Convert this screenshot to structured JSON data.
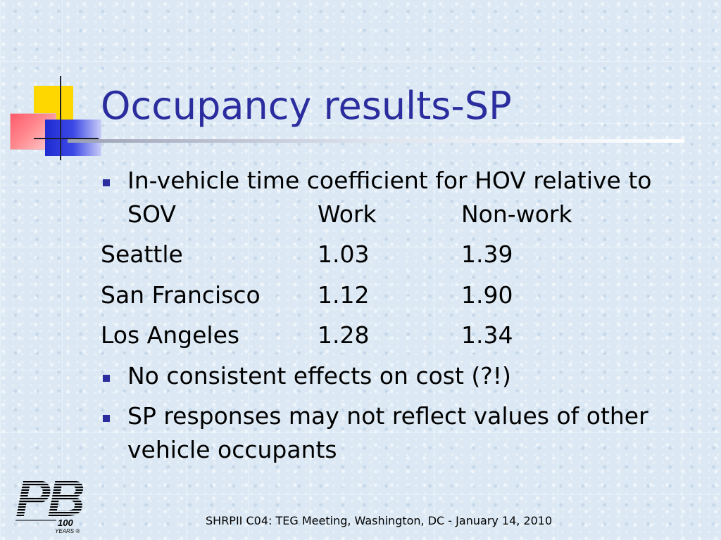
{
  "slide": {
    "title": "Occupancy results-SP",
    "bullets": [
      {
        "line1": "In-vehicle time coefficient for HOV relative to",
        "line2": "SOV"
      },
      {
        "text": "No consistent effects on cost (?!)"
      },
      {
        "line1": "SP responses may not reflect values of other",
        "line2": "vehicle occupants"
      }
    ],
    "table": {
      "headers": {
        "work": "Work",
        "nonwork": "Non-work"
      },
      "rows": [
        {
          "city": "Seattle",
          "work": "1.03",
          "nonwork": "1.39"
        },
        {
          "city": "San Francisco",
          "work": "1.12",
          "nonwork": "1.90"
        },
        {
          "city": "Los Angeles",
          "work": "1.28",
          "nonwork": "1.34"
        }
      ]
    }
  },
  "footer": "SHRPII C04: TEG Meeting, Washington, DC - January 14, 2010",
  "logo": {
    "letters": "PB",
    "years_num": "100",
    "years_word": "YEARS ®"
  },
  "colors": {
    "title": "#2b2d9e",
    "bullet": "#2b2d9e",
    "background": "#dce9f4"
  }
}
